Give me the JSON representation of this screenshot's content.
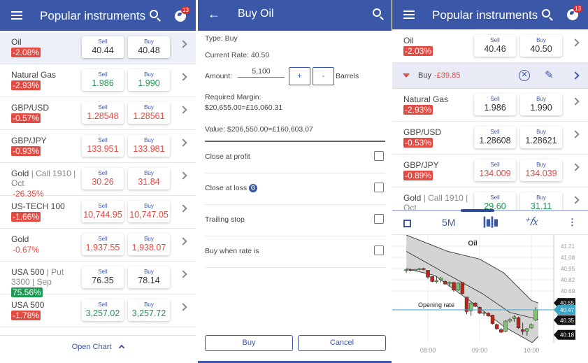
{
  "colors": {
    "header": "#3b57a8",
    "red": "#e34a41",
    "green": "#1e9650"
  },
  "left_panel": {
    "title": "Popular instruments",
    "notification_count": "13",
    "sell_label": "Sell",
    "buy_label": "Buy",
    "instruments": [
      {
        "name": "Oil",
        "sub": "",
        "change": "-2.08%",
        "change_style": "badge-red",
        "sell": "40.44",
        "buy": "40.48",
        "price_color": "dark",
        "highlighted": true
      },
      {
        "name": "Natural Gas",
        "sub": "",
        "change": "-2.93%",
        "change_style": "badge-red",
        "sell": "1.986",
        "buy": "1.990",
        "price_color": "green"
      },
      {
        "name": "GBP/USD",
        "sub": "",
        "change": "-0.57%",
        "change_style": "badge-red",
        "sell": "1.28548",
        "buy": "1.28561",
        "price_color": "red"
      },
      {
        "name": "GBP/JPY",
        "sub": "",
        "change": "-0.93%",
        "change_style": "badge-red",
        "sell": "133.951",
        "buy": "133.981",
        "price_color": "red"
      },
      {
        "name": "Gold",
        "sub": " | Call 1910 | Oct",
        "change": "-26.35%",
        "change_style": "text-red",
        "sell": "30.26",
        "buy": "31.84",
        "price_color": "red"
      },
      {
        "name": "US-TECH 100",
        "sub": "",
        "change": "-1.66%",
        "change_style": "badge-red",
        "sell": "10,744.95",
        "buy": "10,747.05",
        "price_color": "red"
      },
      {
        "name": "Gold",
        "sub": "",
        "change": "-0.67%",
        "change_style": "text-red",
        "sell": "1,937.55",
        "buy": "1,938.07",
        "price_color": "red"
      },
      {
        "name": "USA 500",
        "sub": " | Put 3300 | Sep",
        "change": "75.56%",
        "change_style": "badge-green",
        "sell": "76.35",
        "buy": "78.14",
        "price_color": "dark"
      },
      {
        "name": "USA 500",
        "sub": "",
        "change": "-1.78%",
        "change_style": "badge-red",
        "sell": "3,257.02",
        "buy": "3,257.72",
        "price_color": "green"
      }
    ],
    "footer_label": "Open Chart"
  },
  "order_panel": {
    "title": "Buy Oil",
    "type": "Type: Buy",
    "current_rate": "Current Rate: 40.50",
    "amount_label": "Amount:",
    "amount_value": "5,100",
    "plus": "+",
    "minus": "-",
    "unit": "Barrels",
    "margin_label": "Required Margin:",
    "margin_value": "$20,655.00=£16,060.31",
    "value": "Value: $206,550.00=£160,603.07",
    "options": [
      {
        "label": "Close at profit",
        "checked": false
      },
      {
        "label": "Close at loss",
        "guaranteed_icon": "G",
        "checked": false
      },
      {
        "label": "Trailing stop",
        "checked": false
      },
      {
        "label": "Buy when rate is",
        "checked": false
      }
    ],
    "buy_button": "Buy",
    "cancel_button": "Cancel"
  },
  "right_panel": {
    "title": "Popular instruments",
    "notification_count": "13",
    "sell_label": "Sell",
    "buy_label": "Buy",
    "oil": {
      "name": "Oil",
      "sub": "",
      "change": "-2.03%",
      "change_style": "badge-red",
      "sell": "40.46",
      "buy": "40.50",
      "price_color": "dark"
    },
    "position": {
      "direction": "Buy",
      "pnl": "-£39.85"
    },
    "instruments": [
      {
        "name": "Natural Gas",
        "sub": "",
        "change": "-2.93%",
        "change_style": "badge-red",
        "sell": "1.986",
        "buy": "1.990",
        "price_color": "dark"
      },
      {
        "name": "GBP/USD",
        "sub": "",
        "change": "-0.53%",
        "change_style": "badge-red",
        "sell": "1.28608",
        "buy": "1.28621",
        "price_color": "dark"
      },
      {
        "name": "GBP/JPY",
        "sub": "",
        "change": "-0.89%",
        "change_style": "badge-red",
        "sell": "134.009",
        "buy": "134.039",
        "price_color": "red"
      },
      {
        "name": "Gold",
        "sub": " | Call 1910 | Oct",
        "change": "",
        "change_style": "text-red",
        "sell": "29.60",
        "buy": "31.11",
        "price_color": "green"
      }
    ],
    "toolbar": {
      "timeframe": "5M",
      "icons": [
        "fullscreen-icon",
        "candlestick-icon",
        "indicator-fx-icon",
        "more-vertical-icon"
      ]
    }
  },
  "chart_data": {
    "type": "candlestick",
    "title": "Oil",
    "x_ticks": [
      "08:00",
      "09:00",
      "10:00"
    ],
    "y_ticks": [
      "41.21",
      "41.08",
      "40.95",
      "40.82",
      "40.69"
    ],
    "ylim": [
      40.1,
      41.3
    ],
    "price_labels": [
      "40.55",
      "40.47",
      "40.35",
      "40.18"
    ],
    "current_rate": 40.47,
    "opening_rate_label": "Opening rate",
    "start_time": "07:35",
    "interval_minutes": 5,
    "candles": [
      [
        40.93,
        40.95,
        40.9,
        40.94
      ],
      [
        40.94,
        40.95,
        40.92,
        40.93
      ],
      [
        40.93,
        40.95,
        40.92,
        40.94
      ],
      [
        40.94,
        40.96,
        40.93,
        40.95
      ],
      [
        40.95,
        40.96,
        40.93,
        40.94
      ],
      [
        40.93,
        40.93,
        40.83,
        40.85
      ],
      [
        40.86,
        40.86,
        40.79,
        40.8
      ],
      [
        40.8,
        40.86,
        40.78,
        40.81
      ],
      [
        40.82,
        40.85,
        40.79,
        40.84
      ],
      [
        40.8,
        40.82,
        40.76,
        40.77
      ],
      [
        40.78,
        40.8,
        40.74,
        40.79
      ],
      [
        40.79,
        40.79,
        40.68,
        40.7
      ],
      [
        40.7,
        40.79,
        40.69,
        40.78
      ],
      [
        40.79,
        40.79,
        40.65,
        40.66
      ],
      [
        40.62,
        40.62,
        40.42,
        40.45
      ],
      [
        40.46,
        40.57,
        40.4,
        40.55
      ],
      [
        40.55,
        40.56,
        40.5,
        40.51
      ],
      [
        40.5,
        40.51,
        40.42,
        40.43
      ],
      [
        40.43,
        40.45,
        40.4,
        40.44
      ],
      [
        40.43,
        40.44,
        40.39,
        40.4
      ],
      [
        40.41,
        40.41,
        40.3,
        40.31
      ],
      [
        40.3,
        40.31,
        40.24,
        40.25
      ],
      [
        40.24,
        40.26,
        40.2,
        40.21
      ],
      [
        40.22,
        40.35,
        40.21,
        40.34
      ],
      [
        40.34,
        40.38,
        40.32,
        40.36
      ],
      [
        40.37,
        40.41,
        40.33,
        40.39
      ],
      [
        40.38,
        40.39,
        40.25,
        40.26
      ],
      [
        40.24,
        40.32,
        40.18,
        40.22
      ],
      [
        40.22,
        40.26,
        40.17,
        40.25
      ],
      [
        40.26,
        40.31,
        40.25,
        40.3
      ],
      [
        40.35,
        40.5,
        40.34,
        40.47
      ]
    ],
    "band_upper": [
      [
        "07:35",
        41.34
      ],
      [
        "08:23",
        41.15
      ],
      [
        "09:00",
        41.06
      ],
      [
        "09:28",
        40.9
      ],
      [
        "10:00",
        40.58
      ],
      [
        "10:08",
        40.55
      ]
    ],
    "band_middle": [
      [
        "07:35",
        41.15
      ],
      [
        "08:23",
        40.88
      ],
      [
        "09:03",
        40.66
      ],
      [
        "09:35",
        40.44
      ],
      [
        "10:08",
        40.36
      ]
    ],
    "band_lower": [
      [
        "07:35",
        40.95
      ],
      [
        "08:08",
        40.87
      ],
      [
        "08:48",
        40.58
      ],
      [
        "09:29",
        40.27
      ],
      [
        "10:01",
        40.09
      ],
      [
        "10:08",
        40.16
      ]
    ]
  }
}
